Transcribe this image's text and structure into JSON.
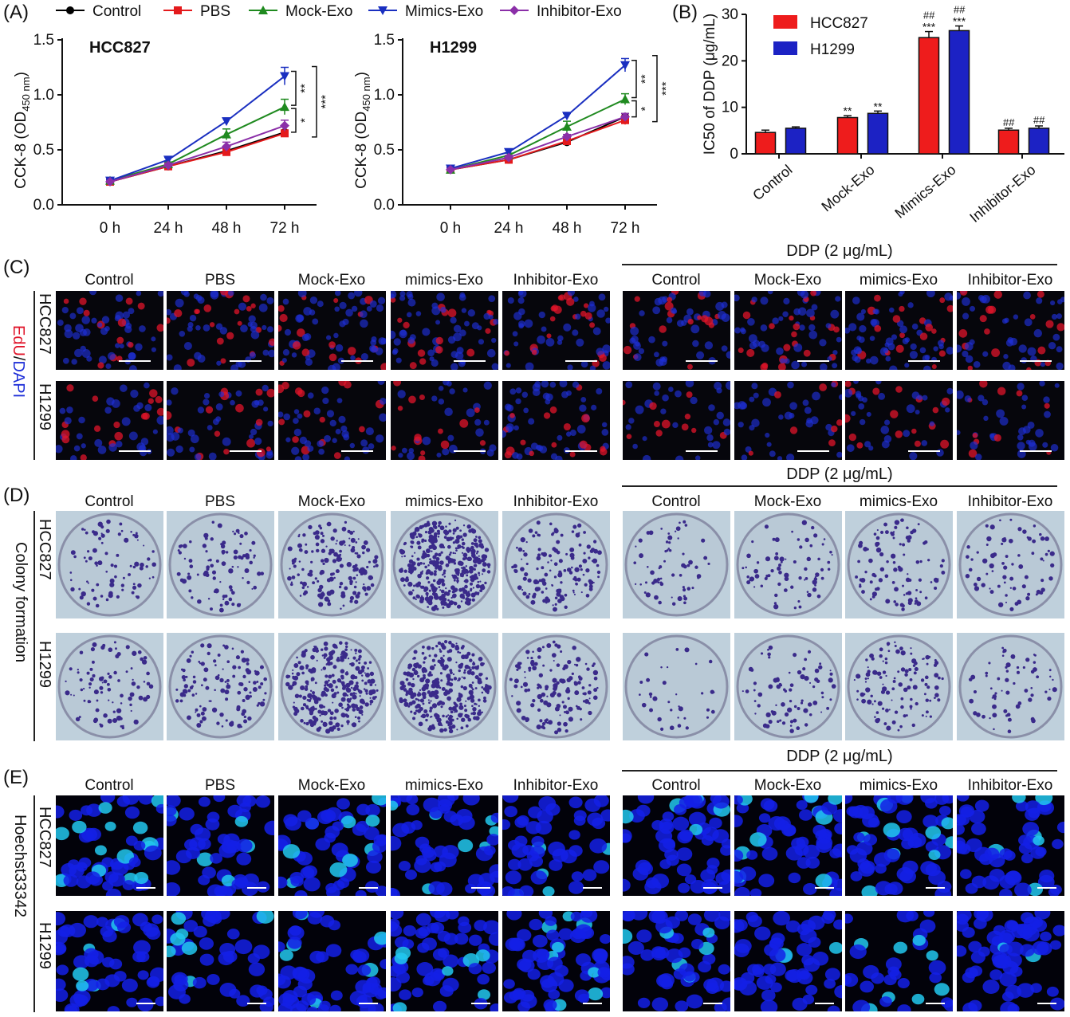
{
  "panels": {
    "A": "(A)",
    "B": "(B)",
    "C": "(C)",
    "D": "(D)",
    "E": "(E)"
  },
  "legend_A": [
    {
      "name": "Control",
      "color": "#000000",
      "marker": "circle"
    },
    {
      "name": "PBS",
      "color": "#e41a1c",
      "marker": "square"
    },
    {
      "name": "Mock-Exo",
      "color": "#1f8a1f",
      "marker": "triangle-up"
    },
    {
      "name": "Mimics-Exo",
      "color": "#1a2fc0",
      "marker": "triangle-down"
    },
    {
      "name": "Inhibitor-Exo",
      "color": "#8b2fa8",
      "marker": "diamond"
    }
  ],
  "chart_data": [
    {
      "type": "line",
      "title": "HCC827",
      "ylabel": "CCK-8 (OD450 nm)",
      "ylabel_main": "CCK-8 (OD",
      "ylabel_sub": "450 nm",
      "ylabel_end": ")",
      "categories": [
        "0 h",
        "24 h",
        "48 h",
        "72 h"
      ],
      "ylim": [
        0,
        1.5
      ],
      "yticks": [
        "0.0",
        "0.5",
        "1.0",
        "1.5"
      ],
      "series": [
        {
          "name": "Control",
          "values": [
            0.21,
            0.35,
            0.49,
            0.66
          ],
          "err": [
            0.01,
            0.02,
            0.02,
            0.02
          ]
        },
        {
          "name": "PBS",
          "values": [
            0.21,
            0.35,
            0.48,
            0.65
          ],
          "err": [
            0.01,
            0.02,
            0.02,
            0.02
          ]
        },
        {
          "name": "Mock-Exo",
          "values": [
            0.22,
            0.37,
            0.64,
            0.89
          ],
          "err": [
            0.01,
            0.02,
            0.05,
            0.07
          ]
        },
        {
          "name": "Mimics-Exo",
          "values": [
            0.22,
            0.41,
            0.76,
            1.17
          ],
          "err": [
            0.01,
            0.02,
            0.03,
            0.08
          ]
        },
        {
          "name": "Inhibitor-Exo",
          "values": [
            0.21,
            0.36,
            0.53,
            0.72
          ],
          "err": [
            0.01,
            0.02,
            0.04,
            0.05
          ]
        }
      ],
      "significance": [
        {
          "label": "**",
          "between": [
            "Mimics-Exo",
            "Mock-Exo"
          ]
        },
        {
          "label": "*",
          "between": [
            "Mock-Exo",
            "Control"
          ]
        },
        {
          "label": "***",
          "between": [
            "Mimics-Exo",
            "Control"
          ]
        }
      ]
    },
    {
      "type": "line",
      "title": "H1299",
      "ylabel": "CCK-8 (OD450 nm)",
      "ylabel_main": "CCK-8 (OD",
      "ylabel_sub": "450 nm",
      "ylabel_end": ")",
      "categories": [
        "0 h",
        "24 h",
        "48 h",
        "72 h"
      ],
      "ylim": [
        0,
        1.5
      ],
      "yticks": [
        "0.0",
        "0.5",
        "1.0",
        "1.5"
      ],
      "series": [
        {
          "name": "Control",
          "values": [
            0.32,
            0.41,
            0.57,
            0.8
          ],
          "err": [
            0.01,
            0.02,
            0.02,
            0.03
          ]
        },
        {
          "name": "PBS",
          "values": [
            0.32,
            0.41,
            0.58,
            0.77
          ],
          "err": [
            0.01,
            0.02,
            0.02,
            0.04
          ]
        },
        {
          "name": "Mock-Exo",
          "values": [
            0.32,
            0.45,
            0.71,
            0.96
          ],
          "err": [
            0.01,
            0.02,
            0.05,
            0.05
          ]
        },
        {
          "name": "Mimics-Exo",
          "values": [
            0.33,
            0.48,
            0.81,
            1.27
          ],
          "err": [
            0.01,
            0.02,
            0.02,
            0.06
          ]
        },
        {
          "name": "Inhibitor-Exo",
          "values": [
            0.32,
            0.43,
            0.62,
            0.8
          ],
          "err": [
            0.01,
            0.02,
            0.02,
            0.03
          ]
        }
      ],
      "significance": [
        {
          "label": "**",
          "between": [
            "Mimics-Exo",
            "Mock-Exo"
          ]
        },
        {
          "label": "*",
          "between": [
            "Mock-Exo",
            "Control"
          ]
        },
        {
          "label": "***",
          "between": [
            "Mimics-Exo",
            "Control"
          ]
        }
      ]
    },
    {
      "type": "bar",
      "ylabel": "IC50 of DDP (μg/mL)",
      "categories": [
        "Control",
        "Mock-Exo",
        "Mimics-Exo",
        "Inhibitor-Exo"
      ],
      "ylim": [
        0,
        30
      ],
      "yticks": [
        "0",
        "10",
        "20",
        "30"
      ],
      "series": [
        {
          "name": "HCC827",
          "color": "#ee1c1c",
          "values": [
            4.6,
            7.8,
            25.0,
            5.1
          ],
          "err": [
            0.5,
            0.4,
            1.3,
            0.4
          ],
          "marks": [
            [
              "",
              ""
            ],
            [
              "",
              "**"
            ],
            [
              "##",
              "***"
            ],
            [
              "##",
              ""
            ]
          ]
        },
        {
          "name": "H1299",
          "color": "#1c22c4",
          "values": [
            5.5,
            8.7,
            26.5,
            5.5
          ],
          "err": [
            0.3,
            0.5,
            1.0,
            0.5
          ],
          "marks": [
            [
              "",
              ""
            ],
            [
              "",
              "**"
            ],
            [
              "##",
              "***"
            ],
            [
              "##",
              ""
            ]
          ]
        }
      ]
    }
  ],
  "images": {
    "left_columns": [
      "Control",
      "PBS",
      "Mock-Exo",
      "mimics-Exo",
      "Inhibitor-Exo"
    ],
    "right_columns": [
      "Control",
      "Mock-Exo",
      "mimics-Exo",
      "Inhibitor-Exo"
    ],
    "ddp_label": "DDP (2 μg/mL)",
    "rows": [
      "HCC827",
      "H1299"
    ],
    "C_stain": {
      "edu": "EdU",
      "slash": "/",
      "dapi": "DAPI"
    },
    "D_label": "Colony formation",
    "E_label": "Hoechst33342",
    "colors": {
      "edu_red": "#e0142a",
      "dapi_blue": "#1e2fd8",
      "hoechst_blue": "#1420e6",
      "colony_purple": "#3a2a8a",
      "dish_bg": "#b9c9d6"
    }
  }
}
